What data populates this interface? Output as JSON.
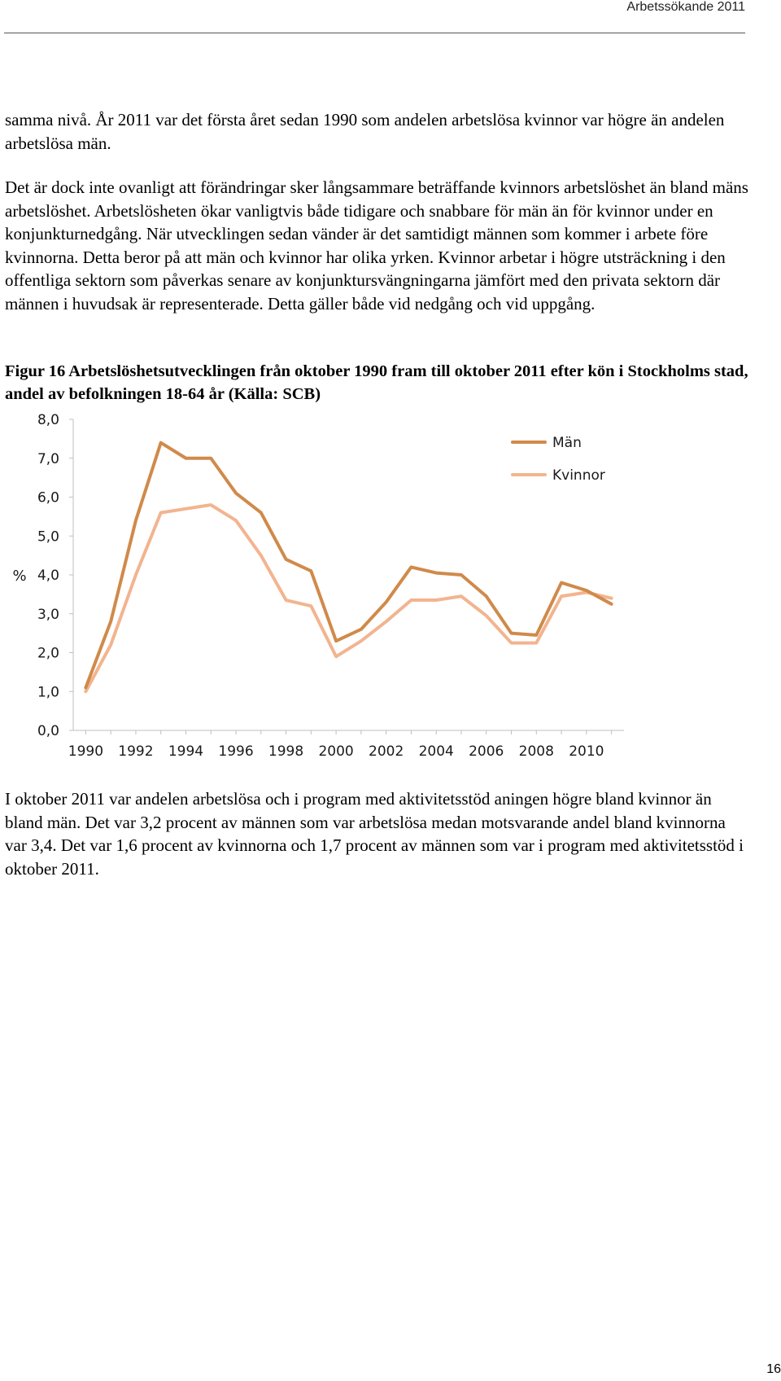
{
  "header": {
    "title": "Arbetssökande 2011"
  },
  "paragraphs": [
    "samma nivå. År 2011 var det första året sedan 1990 som andelen arbetslösa kvinnor var högre än andelen arbetslösa män.",
    "Det är dock inte ovanligt att förändringar sker långsammare beträffande kvinnors arbetslöshet än bland mäns arbetslöshet. Arbetslösheten ökar vanligtvis både tidigare och snabbare för män än för kvinnor under en konjunkturnedgång. När utvecklingen sedan vänder är det samtidigt männen som kommer i arbete före kvinnorna. Detta beror på att män och kvinnor har olika yrken. Kvinnor arbetar i högre utsträckning i den offentliga sektorn som påverkas senare av konjunktursvängningarna jämfört med den privata sektorn där männen i huvudsak är representerade. Detta gäller både vid nedgång och vid uppgång.",
    "I oktober 2011 var andelen arbetslösa och i program med aktivitetsstöd aningen högre bland kvinnor än bland män. Det var 3,2 procent av männen som var arbetslösa medan motsvarande andel bland kvinnorna var 3,4. Det var 1,6 procent av kvinnorna och 1,7 procent av männen som var i program med aktivitetsstöd i oktober 2011."
  ],
  "caption": "Figur 16 Arbetslöshetsutvecklingen från oktober 1990 fram till oktober 2011 efter kön i Stockholms stad, andel av befolkningen 18-64 år (Källa: SCB)",
  "page_number": "16",
  "chart_data": {
    "type": "line",
    "ylabel": "%",
    "ylim": [
      0,
      8
    ],
    "y_ticks": [
      "0,0",
      "1,0",
      "2,0",
      "3,0",
      "4,0",
      "5,0",
      "6,0",
      "7,0",
      "8,0"
    ],
    "x_ticks": [
      "1990",
      "1992",
      "1994",
      "1996",
      "1998",
      "2000",
      "2002",
      "2004",
      "2006",
      "2008",
      "2010"
    ],
    "x": [
      1990,
      1991,
      1992,
      1993,
      1994,
      1995,
      1996,
      1997,
      1998,
      1999,
      2000,
      2001,
      2002,
      2003,
      2004,
      2005,
      2006,
      2007,
      2008,
      2009,
      2010,
      2011
    ],
    "legend_position": "top-right",
    "grid": false,
    "series": [
      {
        "name": "Män",
        "color": "#d08a4a",
        "values": [
          1.1,
          2.8,
          5.4,
          7.4,
          7.0,
          7.0,
          6.1,
          5.6,
          4.4,
          4.1,
          2.3,
          2.6,
          3.3,
          4.2,
          4.05,
          4.0,
          3.45,
          2.5,
          2.45,
          3.8,
          3.6,
          3.25
        ]
      },
      {
        "name": "Kvinnor",
        "color": "#f2b48f",
        "values": [
          1.0,
          2.2,
          4.0,
          5.6,
          5.7,
          5.8,
          5.4,
          4.5,
          3.35,
          3.2,
          1.9,
          2.3,
          2.8,
          3.35,
          3.35,
          3.45,
          2.95,
          2.25,
          2.25,
          3.45,
          3.55,
          3.4
        ]
      }
    ]
  }
}
